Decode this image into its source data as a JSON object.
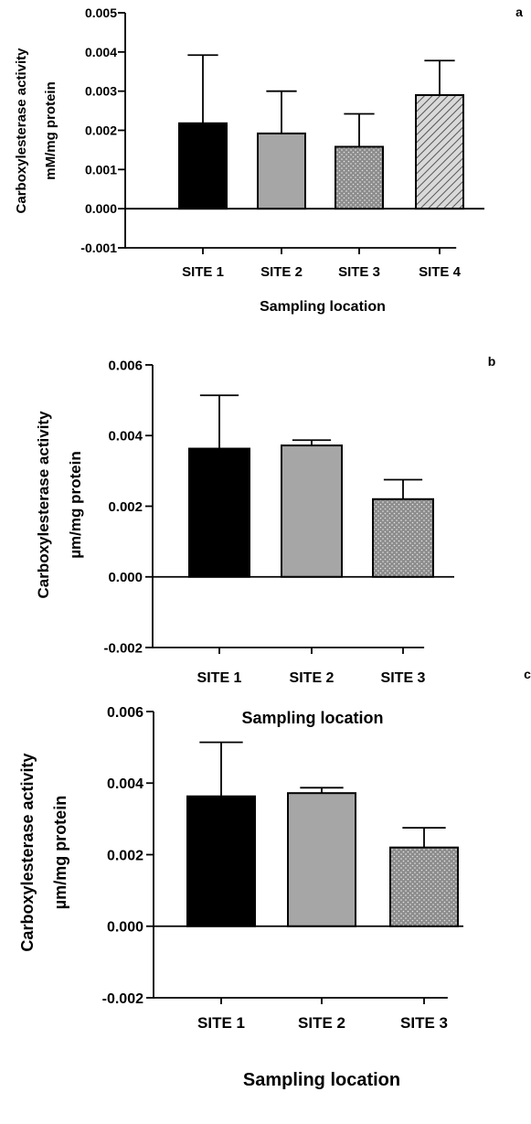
{
  "chart_data": [
    {
      "type": "bar",
      "panel": "a",
      "categories": [
        "SITE 1",
        "SITE 2",
        "SITE 3",
        "SITE 4"
      ],
      "values": [
        0.00218,
        0.00192,
        0.00158,
        0.0029
      ],
      "error_upper": [
        0.00392,
        0.003,
        0.00242,
        0.00378
      ],
      "ylim": [
        -0.001,
        0.005
      ],
      "yticks": [
        -0.001,
        0.0,
        0.001,
        0.002,
        0.003,
        0.004,
        0.005
      ],
      "ytick_labels": [
        "-0.001",
        "0.000",
        "0.001",
        "0.002",
        "0.003",
        "0.004",
        "0.005"
      ],
      "ylabel_line1": "Carboxylesterase activity",
      "ylabel_line2": "mM/mg protein",
      "xlabel": "Sampling location",
      "bar_fills": [
        "black",
        "gray",
        "dots",
        "hatch"
      ],
      "grid": false
    },
    {
      "type": "bar",
      "panel": "b",
      "categories": [
        "SITE 1",
        "SITE 2",
        "SITE 3"
      ],
      "values": [
        0.00363,
        0.00372,
        0.0022
      ],
      "error_upper": [
        0.00514,
        0.00387,
        0.00275
      ],
      "ylim": [
        -0.002,
        0.006
      ],
      "yticks": [
        -0.002,
        0.0,
        0.002,
        0.004,
        0.006
      ],
      "ytick_labels": [
        "-0.002",
        "0.000",
        "0.002",
        "0.004",
        "0.006"
      ],
      "ylabel_line1": "Carboxylesterase activity",
      "ylabel_line2": "µm/mg protein",
      "xlabel": "Sampling location",
      "bar_fills": [
        "black",
        "gray",
        "dots"
      ],
      "grid": false
    },
    {
      "type": "bar",
      "panel": "c",
      "categories": [
        "SITE 1",
        "SITE 2",
        "SITE 3"
      ],
      "values": [
        0.00363,
        0.00372,
        0.0022
      ],
      "error_upper": [
        0.00514,
        0.00387,
        0.00275
      ],
      "ylim": [
        -0.002,
        0.006
      ],
      "yticks": [
        -0.002,
        0.0,
        0.002,
        0.004,
        0.006
      ],
      "ytick_labels": [
        "-0.002",
        "0.000",
        "0.002",
        "0.004",
        "0.006"
      ],
      "ylabel_line1": "Carboxylesterase activity",
      "ylabel_line2": "µm/mg protein",
      "xlabel": "Sampling location",
      "bar_fills": [
        "black",
        "gray",
        "dots"
      ],
      "grid": false
    }
  ],
  "colors": {
    "black_bar": "#000000",
    "gray_bar": "#a6a6a6",
    "dot_bar_bg": "#8c8c8c",
    "dot_color": "#e6e6e6",
    "hatch_bg": "#d9d9d9",
    "hatch_line": "#555555",
    "axis": "#000000"
  }
}
